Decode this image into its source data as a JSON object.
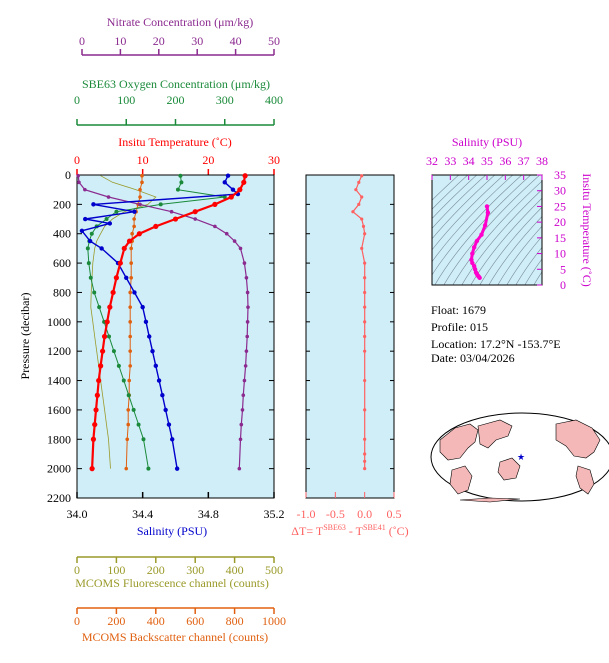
{
  "info": {
    "float": "Float:  1679",
    "profile": "Profile:  015",
    "location": "Location:  17.2°N  -153.7°E",
    "date": "Date:  03/04/2026"
  },
  "colors": {
    "nitrate": "#8b2a8f",
    "oxygen": "#1a8a3a",
    "temperature": "#ff0000",
    "salinity": "#0000cc",
    "fluorescence": "#9a9a2a",
    "backscatter": "#e06010",
    "delta_t": "#ff6060",
    "ts_trace": "#ff00cc",
    "ts_axis": "#cc00cc",
    "plot_bg": "#cfeef8"
  },
  "axes": {
    "nitrate": {
      "label": "Nitrate Concentration (μm/kg)",
      "ticks": [
        "0",
        "10",
        "20",
        "30",
        "40",
        "50"
      ],
      "range": [
        0,
        50
      ]
    },
    "oxygen": {
      "label": "SBE63 Oxygen Concentration (μm/kg)",
      "ticks": [
        "0",
        "100",
        "200",
        "300",
        "400"
      ],
      "range": [
        0,
        400
      ]
    },
    "temperature": {
      "label": "Insitu Temperature (˚C)",
      "ticks": [
        "0",
        "10",
        "20",
        "30"
      ],
      "range": [
        0,
        30
      ]
    },
    "pressure": {
      "label": "Pressure (decibar)",
      "ticks": [
        "0",
        "200",
        "400",
        "600",
        "800",
        "1000",
        "1200",
        "1400",
        "1600",
        "1800",
        "2000",
        "2200"
      ],
      "range": [
        0,
        2200
      ]
    },
    "salinity": {
      "label": "Salinity (PSU)",
      "ticks": [
        "34.0",
        "34.4",
        "34.8",
        "35.2"
      ],
      "range": [
        34.0,
        35.2
      ]
    },
    "fluorescence": {
      "label": "MCOMS Fluorescence channel (counts)",
      "ticks": [
        "0",
        "100",
        "200",
        "300",
        "400",
        "500"
      ],
      "range": [
        0,
        500
      ]
    },
    "backscatter": {
      "label": "MCOMS Backscatter channel (counts)",
      "ticks": [
        "0",
        "200",
        "400",
        "600",
        "800",
        "1000"
      ],
      "range": [
        0,
        1000
      ]
    },
    "delta_t": {
      "label_prefix": "ΔT= T",
      "sup1": "SBE63",
      "label_mid": " - T",
      "sup2": "SBE41",
      "label_suffix": " (˚C)",
      "ticks": [
        "-1.0",
        "-0.5",
        "0.0",
        "0.5"
      ],
      "range": [
        -1.0,
        0.5
      ]
    },
    "ts_salinity": {
      "label": "Salinity (PSU)",
      "ticks": [
        "32",
        "33",
        "34",
        "35",
        "36",
        "37",
        "38"
      ],
      "range": [
        32,
        38
      ]
    },
    "ts_temperature": {
      "label": "Insitu Temperature (˚C)",
      "ticks": [
        "0",
        "5",
        "10",
        "15",
        "20",
        "25",
        "30",
        "35"
      ],
      "range": [
        0,
        35
      ]
    }
  },
  "chart_data": [
    {
      "type": "line",
      "title": "",
      "ylabel": "Pressure (decibar)",
      "ylim": [
        2200,
        0
      ],
      "series": [
        {
          "name": "Insitu Temperature (˚C)",
          "axis": "temperature",
          "x": [
            25.6,
            25.4,
            24.8,
            23.5,
            21.0,
            18.0,
            15.0,
            12.0,
            9.5,
            8.0,
            7.2,
            6.6,
            6.0,
            5.5,
            5.0,
            4.6,
            4.2,
            3.9,
            3.6,
            3.3,
            3.1,
            2.9,
            2.7,
            2.5,
            2.3
          ],
          "y": [
            5,
            50,
            100,
            150,
            200,
            250,
            300,
            350,
            400,
            450,
            500,
            600,
            700,
            800,
            900,
            1000,
            1100,
            1200,
            1300,
            1400,
            1500,
            1600,
            1700,
            1800,
            2000
          ]
        },
        {
          "name": "Salinity (PSU)",
          "axis": "salinity",
          "x": [
            34.92,
            34.9,
            34.95,
            34.98,
            34.1,
            34.35,
            34.05,
            34.2,
            34.03,
            34.08,
            34.15,
            34.25,
            34.3,
            34.35,
            34.4,
            34.42,
            34.44,
            34.46,
            34.48,
            34.5,
            34.52,
            34.54,
            34.56,
            34.58,
            34.61
          ],
          "y": [
            5,
            50,
            100,
            130,
            200,
            250,
            300,
            330,
            380,
            450,
            500,
            600,
            700,
            800,
            900,
            1000,
            1100,
            1200,
            1300,
            1400,
            1500,
            1600,
            1700,
            1800,
            2000
          ]
        },
        {
          "name": "Oxygen (μm/kg)",
          "axis": "oxygen",
          "x": [
            210,
            212,
            205,
            300,
            170,
            80,
            60,
            40,
            30,
            25,
            22,
            24,
            28,
            35,
            45,
            55,
            65,
            75,
            85,
            95,
            105,
            115,
            125,
            135,
            145
          ],
          "y": [
            5,
            50,
            100,
            150,
            200,
            250,
            300,
            350,
            400,
            450,
            500,
            600,
            700,
            800,
            900,
            1000,
            1100,
            1200,
            1300,
            1400,
            1500,
            1600,
            1700,
            1800,
            2000
          ]
        },
        {
          "name": "Nitrate (μm/kg)",
          "axis": "nitrate",
          "x": [
            0.3,
            0.5,
            2.0,
            8.0,
            16.0,
            24.0,
            30.0,
            35.0,
            38.0,
            40.0,
            41.5,
            42.5,
            43.0,
            43.3,
            43.4,
            43.3,
            43.2,
            43.0,
            42.8,
            42.5,
            42.2,
            42.0,
            41.7,
            41.5,
            41.2
          ],
          "y": [
            5,
            50,
            100,
            150,
            200,
            250,
            300,
            350,
            400,
            450,
            500,
            600,
            700,
            800,
            900,
            1000,
            1100,
            1200,
            1300,
            1400,
            1500,
            1600,
            1700,
            1800,
            2000
          ]
        },
        {
          "name": "Fluorescence (counts)",
          "axis": "fluorescence",
          "x": [
            60,
            90,
            150,
            200,
            180,
            120,
            90,
            70,
            60,
            50,
            45,
            40,
            38,
            36,
            35,
            40,
            45,
            50,
            55,
            60,
            65,
            70,
            75,
            80,
            85
          ],
          "y": [
            5,
            50,
            100,
            150,
            200,
            250,
            300,
            350,
            400,
            450,
            500,
            600,
            700,
            800,
            900,
            1000,
            1100,
            1200,
            1300,
            1400,
            1500,
            1600,
            1700,
            1800,
            2000
          ]
        },
        {
          "name": "Backscatter (counts)",
          "axis": "backscatter",
          "x": [
            330,
            330,
            320,
            320,
            310,
            300,
            290,
            290,
            280,
            280,
            275,
            275,
            275,
            270,
            270,
            270,
            270,
            270,
            270,
            265,
            265,
            260,
            260,
            255,
            250
          ],
          "y": [
            5,
            50,
            100,
            150,
            200,
            250,
            300,
            350,
            400,
            450,
            500,
            600,
            700,
            800,
            900,
            1000,
            1100,
            1200,
            1300,
            1400,
            1500,
            1600,
            1700,
            1800,
            2000
          ]
        }
      ]
    },
    {
      "type": "line",
      "axis": "delta_t",
      "x": [
        -0.05,
        -0.1,
        -0.15,
        -0.05,
        -0.1,
        -0.2,
        -0.05,
        -0.02,
        0.0,
        -0.05,
        0.0,
        0.0,
        0.0,
        0.0,
        0.0,
        0.0,
        0.0,
        0.0,
        0.0,
        0.0,
        0.0,
        0.0,
        0.0
      ],
      "y": [
        5,
        50,
        100,
        150,
        200,
        250,
        300,
        350,
        400,
        500,
        600,
        700,
        800,
        900,
        1000,
        1100,
        1200,
        1400,
        1600,
        1800,
        1900,
        1950,
        2000
      ],
      "ylim": [
        2200,
        0
      ]
    },
    {
      "type": "line",
      "xlabel": "Salinity (PSU)",
      "ylabel": "Insitu Temperature (˚C)",
      "xlim": [
        32,
        38
      ],
      "ylim": [
        0,
        35
      ],
      "x": [
        35.0,
        35.05,
        34.9,
        34.7,
        34.45,
        34.3,
        34.2,
        34.15,
        34.2,
        34.3,
        34.35,
        34.4,
        34.45,
        34.5,
        34.55,
        34.6
      ],
      "y": [
        25.0,
        23.0,
        19.0,
        16.0,
        14.0,
        12.0,
        10.0,
        8.0,
        7.0,
        6.0,
        5.0,
        4.0,
        3.5,
        3.0,
        2.7,
        2.3
      ]
    }
  ]
}
